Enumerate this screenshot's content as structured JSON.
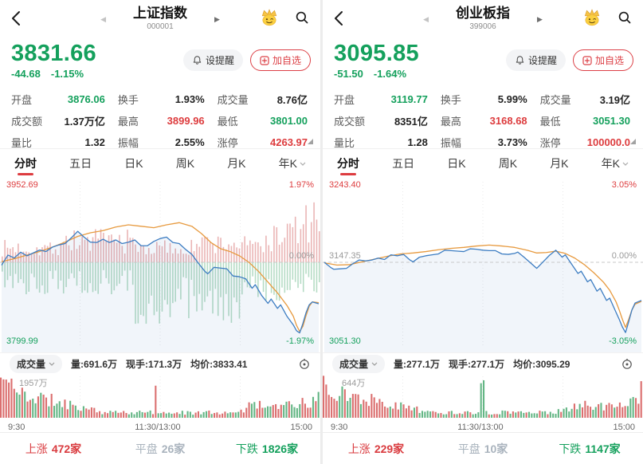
{
  "colors": {
    "up_red": "#dd3c3e",
    "down_green": "#14a05c",
    "flat_gray": "#a9b3bd",
    "accent_red": "#dc4046",
    "price_line": "#3d7dc2",
    "avg_line": "#e79a3f",
    "bar_red": "#db6f6f",
    "bar_green": "#64b685"
  },
  "panels": [
    {
      "title": "上证指数",
      "code": "000001",
      "price": "3831.66",
      "change": "-44.68",
      "change_pct": "-1.15%",
      "price_color": "green",
      "buttons": {
        "alert": "设提醒",
        "add": "加自选"
      },
      "stats": [
        {
          "label": "开盘",
          "value": "3876.06",
          "color": "green"
        },
        {
          "label": "换手",
          "value": "1.93%",
          "color": "black"
        },
        {
          "label": "成交量",
          "value": "8.76亿",
          "color": "black"
        },
        {
          "label": "成交额",
          "value": "1.37万亿",
          "color": "black"
        },
        {
          "label": "最高",
          "value": "3899.96",
          "color": "red"
        },
        {
          "label": "最低",
          "value": "3801.00",
          "color": "green"
        },
        {
          "label": "量比",
          "value": "1.32",
          "color": "black"
        },
        {
          "label": "振幅",
          "value": "2.55%",
          "color": "black"
        },
        {
          "label": "涨停",
          "value": "4263.97",
          "color": "red"
        }
      ],
      "tabs": [
        "分时",
        "五日",
        "日K",
        "周K",
        "月K",
        "年K"
      ],
      "active_tab": 0,
      "chart": {
        "type": "line",
        "high_label": "3952.69",
        "high_pct": "1.97%",
        "baseline_left": "",
        "baseline_right": "0.00%",
        "low_label": "3799.99",
        "low_pct": "-1.97%",
        "max_pct": 1.97,
        "has_minute_bars": true,
        "seed": 7,
        "price_line": [
          [
            0,
            -0.08
          ],
          [
            2,
            0.2
          ],
          [
            4,
            0.12
          ],
          [
            6,
            0.28
          ],
          [
            8,
            0.18
          ],
          [
            10,
            0.26
          ],
          [
            12,
            0.34
          ],
          [
            14,
            0.3
          ],
          [
            16,
            0.42
          ],
          [
            18,
            0.48
          ],
          [
            20,
            0.52
          ],
          [
            22,
            0.68
          ],
          [
            24,
            0.86
          ],
          [
            26,
            0.7
          ],
          [
            28,
            0.56
          ],
          [
            30,
            0.55
          ],
          [
            32,
            0.64
          ],
          [
            34,
            0.55
          ],
          [
            36,
            0.62
          ],
          [
            38,
            0.52
          ],
          [
            40,
            0.56
          ],
          [
            42,
            0.62
          ],
          [
            44,
            0.46
          ],
          [
            46,
            0.46
          ],
          [
            48,
            0.58
          ],
          [
            50,
            0.66
          ],
          [
            52,
            0.7
          ],
          [
            54,
            0.55
          ],
          [
            56,
            0.52
          ],
          [
            58,
            0.36
          ],
          [
            60,
            0.22
          ],
          [
            62,
            -0.02
          ],
          [
            64,
            -0.24
          ],
          [
            65,
            -0.32
          ],
          [
            67,
            -0.14
          ],
          [
            69,
            -0.16
          ],
          [
            71,
            -0.18
          ],
          [
            73,
            -0.38
          ],
          [
            75,
            -0.4
          ],
          [
            77,
            -0.46
          ],
          [
            79,
            -0.72
          ],
          [
            80,
            -0.62
          ],
          [
            82,
            -0.92
          ],
          [
            84,
            -1.14
          ],
          [
            85,
            -1.02
          ],
          [
            87,
            -1.28
          ],
          [
            88,
            -1.18
          ],
          [
            90,
            -1.5
          ],
          [
            92,
            -1.74
          ],
          [
            93,
            -1.9
          ],
          [
            94,
            -1.96
          ],
          [
            95,
            -1.7
          ],
          [
            96,
            -1.4
          ],
          [
            97,
            -1.18
          ],
          [
            98,
            -1.1
          ],
          [
            100,
            -1.15
          ]
        ],
        "avg_line": [
          [
            0,
            0.02
          ],
          [
            4,
            0.1
          ],
          [
            8,
            0.2
          ],
          [
            12,
            0.3
          ],
          [
            16,
            0.42
          ],
          [
            20,
            0.56
          ],
          [
            24,
            0.72
          ],
          [
            28,
            0.82
          ],
          [
            32,
            0.88
          ],
          [
            36,
            0.98
          ],
          [
            40,
            1.04
          ],
          [
            44,
            1.0
          ],
          [
            48,
            0.96
          ],
          [
            52,
            1.04
          ],
          [
            56,
            1.1
          ],
          [
            60,
            1.0
          ],
          [
            63,
            0.8
          ],
          [
            66,
            0.55
          ],
          [
            69,
            0.38
          ],
          [
            72,
            0.3
          ],
          [
            75,
            0.18
          ],
          [
            78,
            0.0
          ],
          [
            81,
            -0.25
          ],
          [
            84,
            -0.55
          ],
          [
            87,
            -0.85
          ],
          [
            90,
            -1.2
          ],
          [
            92,
            -1.5
          ],
          [
            93,
            -1.75
          ],
          [
            94,
            -1.92
          ],
          [
            95,
            -1.78
          ],
          [
            96,
            -1.48
          ],
          [
            97,
            -1.22
          ],
          [
            98,
            -1.1
          ],
          [
            100,
            -1.12
          ]
        ]
      },
      "volume_bar": {
        "name": "成交量",
        "vol": "量:691.6万",
        "cur": "现手:171.3万",
        "avg": "均价:3833.41"
      },
      "volume_chart": {
        "max_label": "1957万",
        "seed": 11,
        "spike": 0.485,
        "spike_color": "red",
        "last_color": "green",
        "last_h": 0.6,
        "times": [
          "9:30",
          "11:30/13:00",
          "15:00"
        ]
      },
      "breadth": {
        "up_label": "上涨",
        "up": "472家",
        "flat_label": "平盘",
        "flat": "26家",
        "down_label": "下跌",
        "down": "1826家"
      }
    },
    {
      "title": "创业板指",
      "code": "399006",
      "price": "3095.85",
      "change": "-51.50",
      "change_pct": "-1.64%",
      "price_color": "green",
      "buttons": {
        "alert": "设提醒",
        "add": "加自选"
      },
      "stats": [
        {
          "label": "开盘",
          "value": "3119.77",
          "color": "green"
        },
        {
          "label": "换手",
          "value": "5.99%",
          "color": "black"
        },
        {
          "label": "成交量",
          "value": "3.19亿",
          "color": "black"
        },
        {
          "label": "成交额",
          "value": "8351亿",
          "color": "black"
        },
        {
          "label": "最高",
          "value": "3168.68",
          "color": "red"
        },
        {
          "label": "最低",
          "value": "3051.30",
          "color": "green"
        },
        {
          "label": "量比",
          "value": "1.28",
          "color": "black"
        },
        {
          "label": "振幅",
          "value": "3.73%",
          "color": "black"
        },
        {
          "label": "涨停",
          "value": "100000.0",
          "color": "red"
        }
      ],
      "tabs": [
        "分时",
        "五日",
        "日K",
        "周K",
        "月K",
        "年K"
      ],
      "active_tab": 0,
      "chart": {
        "type": "line",
        "high_label": "3243.40",
        "high_pct": "3.05%",
        "baseline_left": "3147.35",
        "baseline_right": "0.00%",
        "low_label": "3051.30",
        "low_pct": "-3.05%",
        "max_pct": 3.05,
        "has_minute_bars": false,
        "seed": 5,
        "price_line": [
          [
            0,
            0
          ],
          [
            2,
            -0.22
          ],
          [
            3,
            -0.3
          ],
          [
            5,
            -0.28
          ],
          [
            7,
            -0.26
          ],
          [
            9,
            -0.06
          ],
          [
            11,
            0.1
          ],
          [
            13,
            0.06
          ],
          [
            15,
            0.1
          ],
          [
            17,
            0.18
          ],
          [
            19,
            0.12
          ],
          [
            21,
            0.32
          ],
          [
            23,
            0.28
          ],
          [
            25,
            0.34
          ],
          [
            27,
            0.1
          ],
          [
            28,
            0.02
          ],
          [
            30,
            0.22
          ],
          [
            32,
            0.28
          ],
          [
            34,
            0.32
          ],
          [
            36,
            0.36
          ],
          [
            38,
            0.52
          ],
          [
            40,
            0.5
          ],
          [
            42,
            0.48
          ],
          [
            44,
            0.46
          ],
          [
            46,
            0.58
          ],
          [
            48,
            0.56
          ],
          [
            50,
            0.52
          ],
          [
            52,
            0.5
          ],
          [
            54,
            0.5
          ],
          [
            56,
            0.36
          ],
          [
            58,
            0.34
          ],
          [
            60,
            0.38
          ],
          [
            61,
            0.44
          ],
          [
            63,
            0.22
          ],
          [
            65,
            -0.02
          ],
          [
            67,
            -0.26
          ],
          [
            69,
            0.02
          ],
          [
            71,
            0.3
          ],
          [
            73,
            0.52
          ],
          [
            75,
            0.22
          ],
          [
            76,
            0.32
          ],
          [
            78,
            -0.08
          ],
          [
            80,
            -0.48
          ],
          [
            81,
            -0.38
          ],
          [
            83,
            -0.84
          ],
          [
            84,
            -0.74
          ],
          [
            86,
            -1.24
          ],
          [
            87,
            -1.12
          ],
          [
            89,
            -1.64
          ],
          [
            90,
            -1.54
          ],
          [
            92,
            -2.15
          ],
          [
            93,
            -2.45
          ],
          [
            94,
            -2.78
          ],
          [
            95,
            -3.02
          ],
          [
            96,
            -2.55
          ],
          [
            97,
            -2.05
          ],
          [
            98,
            -1.75
          ],
          [
            100,
            -1.64
          ]
        ],
        "avg_line": [
          [
            0,
            -0.02
          ],
          [
            4,
            -0.12
          ],
          [
            8,
            -0.1
          ],
          [
            12,
            0.02
          ],
          [
            16,
            0.14
          ],
          [
            20,
            0.26
          ],
          [
            24,
            0.36
          ],
          [
            28,
            0.4
          ],
          [
            32,
            0.46
          ],
          [
            36,
            0.54
          ],
          [
            40,
            0.6
          ],
          [
            44,
            0.64
          ],
          [
            48,
            0.7
          ],
          [
            52,
            0.74
          ],
          [
            56,
            0.7
          ],
          [
            60,
            0.64
          ],
          [
            64,
            0.52
          ],
          [
            67,
            0.4
          ],
          [
            70,
            0.42
          ],
          [
            73,
            0.48
          ],
          [
            76,
            0.38
          ],
          [
            79,
            0.18
          ],
          [
            82,
            -0.1
          ],
          [
            85,
            -0.45
          ],
          [
            88,
            -0.85
          ],
          [
            90,
            -1.2
          ],
          [
            92,
            -1.7
          ],
          [
            93,
            -2.05
          ],
          [
            94,
            -2.45
          ],
          [
            95,
            -2.8
          ],
          [
            96,
            -2.45
          ],
          [
            97,
            -2.05
          ],
          [
            98,
            -1.8
          ],
          [
            100,
            -1.68
          ]
        ]
      },
      "volume_bar": {
        "name": "成交量",
        "vol": "量:277.1万",
        "cur": "现手:277.1万",
        "avg": "均价:3095.29"
      },
      "volume_chart": {
        "max_label": "644万",
        "seed": 13,
        "spike": 0.5,
        "spike_color": "green",
        "last_color": "red",
        "last_h": 0.85,
        "times": [
          "9:30",
          "11:30/13:00",
          "15:00"
        ]
      },
      "breadth": {
        "up_label": "上涨",
        "up": "229家",
        "flat_label": "平盘",
        "flat": "10家",
        "down_label": "下跌",
        "down": "1147家"
      }
    }
  ]
}
